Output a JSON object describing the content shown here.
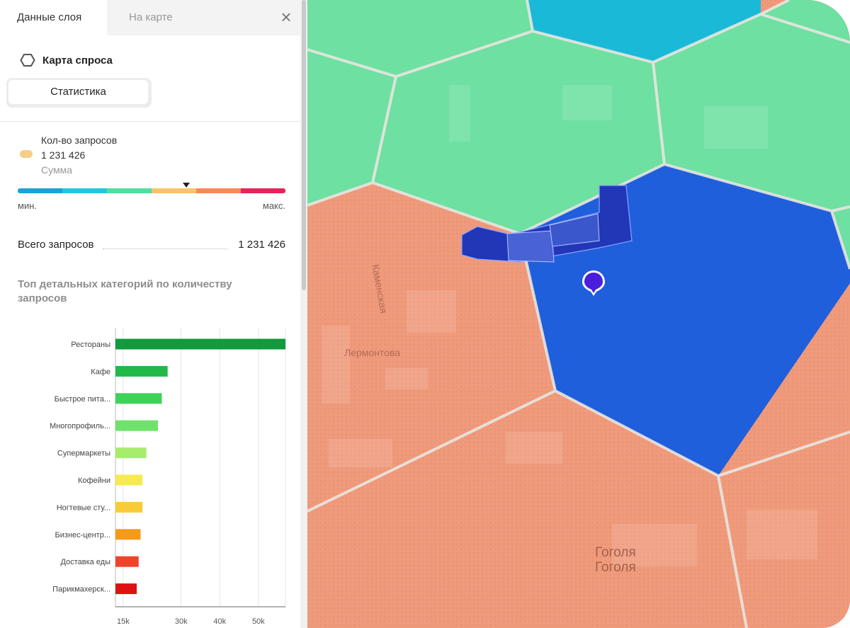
{
  "tabs": [
    {
      "label": "Данные слоя",
      "active": true
    },
    {
      "label": "На карте",
      "active": false
    }
  ],
  "close_icon": "close-icon",
  "layer": {
    "icon": "hexagon-icon",
    "title": "Карта спроса",
    "stats_button": "Статистика"
  },
  "metric": {
    "name": "Кол-во запросов",
    "value": "1 231 426",
    "aggregation": "Сумма",
    "swatch_color": "#f5cf88"
  },
  "scale": {
    "colors": [
      "#1aa3d6",
      "#21c7de",
      "#4fdfa0",
      "#f8c46a",
      "#fb8858",
      "#e8235c"
    ],
    "marker_fraction": 0.63,
    "min_label": "мин.",
    "max_label": "макс."
  },
  "total": {
    "label": "Всего запросов",
    "value": "1 231 426"
  },
  "chart_title": "Топ детальных категорий по количеству запросов",
  "chart_data": {
    "type": "bar",
    "orientation": "horizontal",
    "categories": [
      "Рестораны",
      "Кафе",
      "Быстрое пита...",
      "Многопрофиль...",
      "Супермаркеты",
      "Кофейни",
      "Ногтевые сту...",
      "Бизнес-центр...",
      "Доставка еды",
      "Парикмахерск..."
    ],
    "values": [
      57000,
      26500,
      25000,
      24000,
      21000,
      20000,
      20000,
      19500,
      19000,
      18500
    ],
    "colors": [
      "#129a3c",
      "#22b84a",
      "#3fd25a",
      "#6ee26a",
      "#a8ec6c",
      "#f6ea4e",
      "#f8cb3a",
      "#f69a1a",
      "#f0442a",
      "#de1212"
    ],
    "x_ticks": [
      "15k",
      "30k",
      "40k",
      "50k"
    ],
    "x_tick_values": [
      15000,
      30000,
      40000,
      50000
    ],
    "grid": true,
    "xlim": [
      13000,
      57000
    ]
  },
  "map": {
    "street_labels": [
      "Лермонтова",
      "Каменская",
      "Гоголя",
      "Гоголя"
    ],
    "pin_icon": "map-pin-icon",
    "cell_colors": {
      "low": "#1bb9d8",
      "mid": "#6ee0a1",
      "high": "#f09a7c",
      "selected": "#1f5fdc"
    }
  }
}
